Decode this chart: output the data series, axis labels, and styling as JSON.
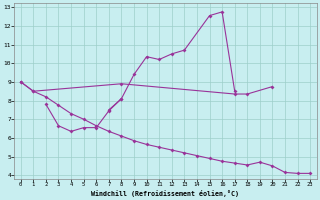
{
  "background_color": "#c8eef0",
  "grid_color": "#9dcfca",
  "line_color": "#993399",
  "xlabel": "Windchill (Refroidissement éolien,°C)",
  "xlim": [
    -0.5,
    23.5
  ],
  "ylim": [
    3.8,
    13.2
  ],
  "xticks": [
    0,
    1,
    2,
    3,
    4,
    5,
    6,
    7,
    8,
    9,
    10,
    11,
    12,
    13,
    14,
    15,
    16,
    17,
    18,
    19,
    20,
    21,
    22,
    23
  ],
  "yticks": [
    4,
    5,
    6,
    7,
    8,
    9,
    10,
    11,
    12,
    13
  ],
  "line1_x": [
    0,
    1,
    8,
    17,
    18,
    20
  ],
  "line1_y": [
    9.0,
    8.5,
    8.9,
    8.35,
    8.35,
    8.75
  ],
  "line2_x": [
    7,
    8,
    9,
    10,
    11,
    12,
    13,
    15,
    16,
    17
  ],
  "line2_y": [
    7.5,
    8.1,
    9.4,
    10.35,
    10.2,
    10.5,
    10.7,
    12.55,
    12.75,
    8.5
  ],
  "line3_x": [
    2,
    3,
    4,
    5,
    6,
    7,
    8
  ],
  "line3_y": [
    7.8,
    6.65,
    6.35,
    6.55,
    6.55,
    7.45,
    8.1
  ],
  "line4_x": [
    0,
    1,
    2,
    3,
    4,
    5,
    6,
    7,
    8,
    9,
    10,
    11,
    12,
    13,
    14,
    15,
    16,
    17,
    18,
    19,
    20,
    21,
    22,
    23
  ],
  "line4_y": [
    9.0,
    8.5,
    8.2,
    7.75,
    7.3,
    7.0,
    6.65,
    6.35,
    6.1,
    5.85,
    5.65,
    5.5,
    5.35,
    5.2,
    5.05,
    4.9,
    4.75,
    4.65,
    4.55,
    4.7,
    4.5,
    4.15,
    4.1,
    4.1
  ]
}
